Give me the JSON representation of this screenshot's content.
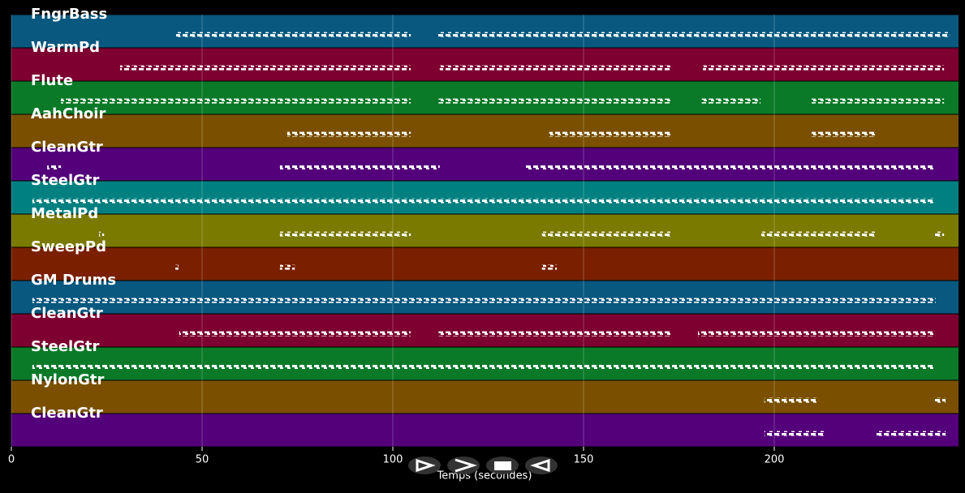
{
  "chart_data": {
    "type": "pianoroll",
    "xlabel": "Temps (secondes)",
    "xlim": [
      0,
      248.3
    ],
    "xticks": [
      0,
      50,
      100,
      150,
      200
    ],
    "grid": true,
    "tracks": [
      {
        "name": "FngrBass",
        "color": "#08587f",
        "segments": [
          [
            43.2,
            104.7
          ],
          [
            111.9,
            246
          ]
        ]
      },
      {
        "name": "WarmPd",
        "color": "#7d0030",
        "segments": [
          [
            28.5,
            104.7
          ],
          [
            112.3,
            173.2
          ],
          [
            181.3,
            244.5
          ]
        ]
      },
      {
        "name": "Flute",
        "color": "#0a7a28",
        "segments": [
          [
            13,
            104.7
          ],
          [
            112,
            173
          ],
          [
            181,
            196.4
          ],
          [
            209.8,
            244.5
          ]
        ]
      },
      {
        "name": "AahChoir",
        "color": "#7a5000",
        "segments": [
          [
            72.3,
            104.7
          ],
          [
            141,
            173.2
          ],
          [
            209.8,
            226.8
          ]
        ]
      },
      {
        "name": "CleanGtr",
        "color": "#53007a",
        "segments": [
          [
            9.4,
            13
          ],
          [
            70.4,
            112.3
          ],
          [
            134.9,
            242
          ]
        ]
      },
      {
        "name": "SteelGtr",
        "color": "#008080",
        "segments": [
          [
            5.5,
            242
          ]
        ]
      },
      {
        "name": "MetalPd",
        "color": "#7a7a00",
        "segments": [
          [
            23,
            24.3
          ],
          [
            70.4,
            104.7
          ],
          [
            139.1,
            173.2
          ],
          [
            196.6,
            226.8
          ],
          [
            242,
            244.5
          ]
        ]
      },
      {
        "name": "SweepPd",
        "color": "#7a2000",
        "segments": [
          [
            43,
            43.8
          ],
          [
            70.4,
            74.3
          ],
          [
            139.1,
            143
          ]
        ]
      },
      {
        "name": "GM Drums",
        "color": "#08587f",
        "segments": [
          [
            5.5,
            242.3
          ]
        ]
      },
      {
        "name": "CleanGtr",
        "color": "#7d0030",
        "segments": [
          [
            44,
            104.7
          ],
          [
            112,
            173
          ],
          [
            180,
            241.7
          ]
        ]
      },
      {
        "name": "SteelGtr",
        "color": "#0a7a28",
        "segments": [
          [
            5.5,
            241.7
          ]
        ]
      },
      {
        "name": "NylonGtr",
        "color": "#7a5000",
        "segments": [
          [
            197.4,
            211.5
          ],
          [
            242,
            244.9
          ]
        ]
      },
      {
        "name": "CleanGtr",
        "color": "#53007a",
        "segments": [
          [
            197.4,
            213.2
          ],
          [
            226.8,
            244.9
          ]
        ]
      }
    ]
  }
}
